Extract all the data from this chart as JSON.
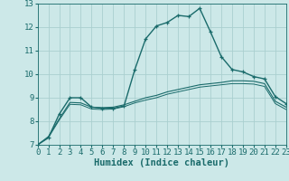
{
  "xlabel": "Humidex (Indice chaleur)",
  "bg_color": "#cce8e8",
  "grid_color": "#aacfcf",
  "line_color": "#1a6b6b",
  "x_values": [
    0,
    1,
    2,
    3,
    4,
    5,
    6,
    7,
    8,
    9,
    10,
    11,
    12,
    13,
    14,
    15,
    16,
    17,
    18,
    19,
    20,
    21,
    22,
    23
  ],
  "line1_y": [
    7.0,
    7.3,
    8.3,
    9.0,
    9.0,
    8.6,
    8.55,
    8.55,
    8.65,
    10.2,
    11.5,
    12.05,
    12.2,
    12.5,
    12.45,
    12.8,
    11.8,
    10.75,
    10.2,
    10.1,
    9.9,
    9.8,
    9.05,
    8.75
  ],
  "line2_y": [
    7.0,
    7.35,
    8.1,
    8.8,
    8.78,
    8.6,
    8.58,
    8.6,
    8.7,
    8.85,
    9.0,
    9.1,
    9.25,
    9.35,
    9.45,
    9.55,
    9.6,
    9.65,
    9.72,
    9.72,
    9.7,
    9.6,
    8.85,
    8.6
  ],
  "line3_y": [
    7.0,
    7.3,
    8.05,
    8.72,
    8.7,
    8.52,
    8.5,
    8.52,
    8.62,
    8.78,
    8.9,
    9.0,
    9.15,
    9.25,
    9.35,
    9.45,
    9.5,
    9.55,
    9.6,
    9.6,
    9.58,
    9.48,
    8.75,
    8.5
  ],
  "ylim": [
    7,
    13
  ],
  "xlim": [
    0,
    23
  ],
  "yticks": [
    7,
    8,
    9,
    10,
    11,
    12,
    13
  ],
  "xticks": [
    0,
    1,
    2,
    3,
    4,
    5,
    6,
    7,
    8,
    9,
    10,
    11,
    12,
    13,
    14,
    15,
    16,
    17,
    18,
    19,
    20,
    21,
    22,
    23
  ],
  "tick_fontsize": 6.5,
  "xlabel_fontsize": 7.5
}
